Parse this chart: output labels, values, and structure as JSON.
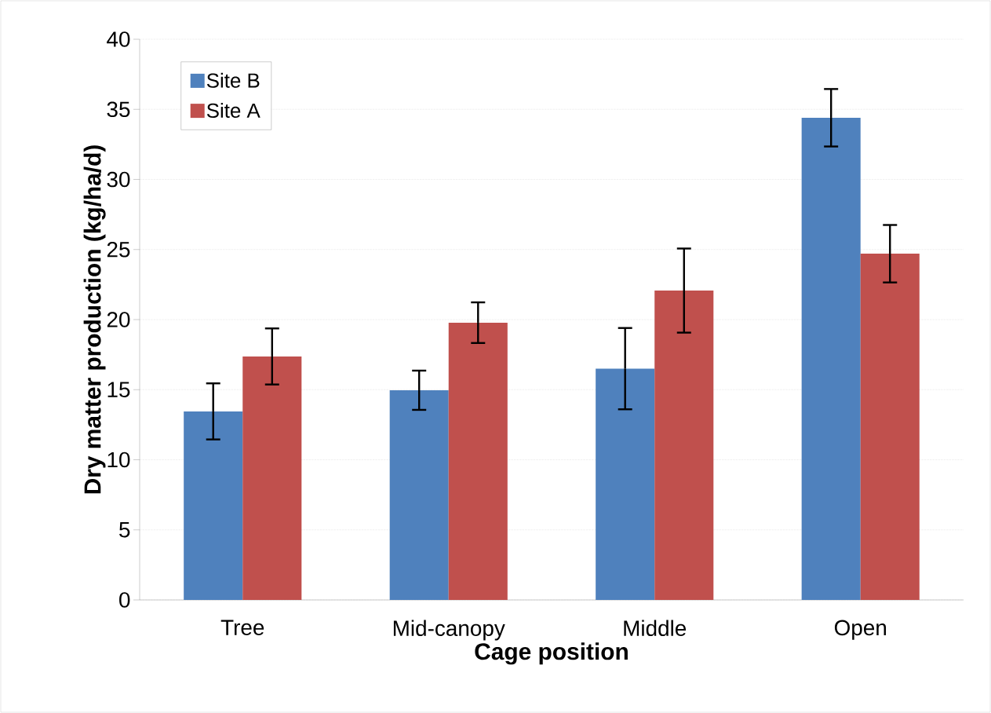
{
  "chart_data": {
    "type": "bar",
    "xlabel": "Cage position",
    "ylabel": "Dry matter production (kg/ha/d)",
    "categories": [
      "Tree",
      "Mid-canopy",
      "Middle",
      "Open"
    ],
    "series": [
      {
        "name": "Site B",
        "color": "#4f81bd",
        "values": [
          13.45,
          14.96,
          16.5,
          34.4
        ],
        "errors": [
          2.0,
          1.4,
          2.9,
          2.05
        ]
      },
      {
        "name": "Site A",
        "color": "#c0504d",
        "values": [
          17.37,
          19.78,
          22.07,
          24.7
        ],
        "errors": [
          2.0,
          1.45,
          3.0,
          2.05
        ]
      }
    ],
    "ylim": [
      0,
      40
    ],
    "yticks": [
      0,
      5,
      10,
      15,
      20,
      25,
      30,
      35,
      40
    ],
    "grid": "y",
    "legend": "top left"
  }
}
